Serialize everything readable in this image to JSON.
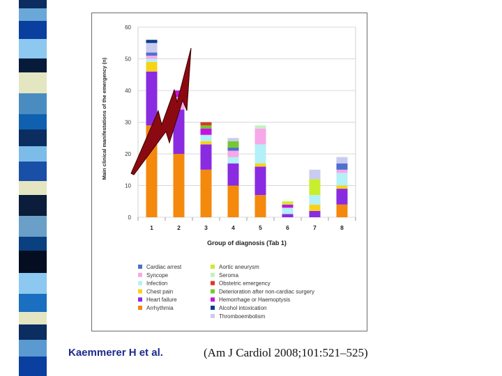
{
  "citation": {
    "author": "Kaemmerer H et al.",
    "reference": "(Am J Cardiol 2008;101:521–525)"
  },
  "colors": {
    "Cardiac arrest": "#4f6fcf",
    "Syncope": "#f7a8e8",
    "Infection": "#b3f0f7",
    "Chest pain": "#f7d316",
    "Heart failure": "#8a2be2",
    "Arrhythmia": "#f4890d",
    "Aortic aneurysm": "#c8ee2e",
    "Seroma": "#c2f1c2",
    "Obstetric emergency": "#d83a2a",
    "Deterioration after non-cardiac surgery": "#74c92e",
    "Hemorrhage or Haemoptysis": "#c414e0",
    "Alcohol intoxication": "#0a3f8c",
    "Thromboembolism": "#c9cbf0",
    "arrow": "#8b0a12"
  },
  "chart_data": {
    "type": "bar",
    "stacked": true,
    "title": "",
    "xlabel": "Group of diagnosis (Tab 1)",
    "ylabel": "Main clinical manifestations of the emergency (n)",
    "ylim": [
      0,
      60
    ],
    "yticks": [
      "0",
      "10",
      "20",
      "30",
      "40",
      "50",
      "60"
    ],
    "categories": [
      "1",
      "2",
      "3",
      "4",
      "5",
      "6",
      "7",
      "8"
    ],
    "series": [
      {
        "name": "Arrhythmia",
        "values": [
          29,
          20,
          15,
          10,
          7,
          0,
          0,
          4
        ]
      },
      {
        "name": "Heart failure",
        "values": [
          17,
          14,
          8,
          7,
          9,
          1,
          2,
          5
        ]
      },
      {
        "name": "Chest pain",
        "values": [
          3,
          0,
          1,
          0,
          1,
          0,
          2,
          1
        ]
      },
      {
        "name": "Infection",
        "values": [
          1,
          0,
          2,
          2,
          6,
          2,
          3,
          4
        ]
      },
      {
        "name": "Syncope",
        "values": [
          1,
          4,
          0,
          2,
          5,
          0,
          0,
          1
        ]
      },
      {
        "name": "Cardiac arrest",
        "values": [
          1,
          0,
          0,
          1,
          0,
          0,
          0,
          2
        ]
      },
      {
        "name": "Hemorrhage or Haemoptysis",
        "values": [
          0,
          2,
          2,
          0,
          0,
          1,
          0,
          0
        ]
      },
      {
        "name": "Deterioration after non-cardiac surgery",
        "values": [
          0,
          0,
          1,
          2,
          0,
          0,
          0,
          0
        ]
      },
      {
        "name": "Obstetric emergency",
        "values": [
          0,
          0,
          1,
          0,
          0,
          0,
          0,
          0
        ]
      },
      {
        "name": "Aortic aneurysm",
        "values": [
          0,
          0,
          0,
          0,
          0,
          1,
          5,
          0
        ]
      },
      {
        "name": "Seroma",
        "values": [
          0,
          0,
          0,
          0,
          1,
          0,
          0,
          0
        ]
      },
      {
        "name": "Thromboembolism",
        "values": [
          3,
          0,
          0,
          1,
          0,
          0,
          3,
          2
        ]
      },
      {
        "name": "Alcohol intoxication",
        "values": [
          1,
          0,
          0,
          0,
          0,
          0,
          0,
          0
        ]
      }
    ],
    "legend": {
      "placement": "bottom",
      "left_column": [
        "Cardiac arrest",
        "Syncope",
        "Infection",
        "Chest pain",
        "Heart failure",
        "Arrhythmia"
      ],
      "right_column": [
        "Aortic aneurysm",
        "Seroma",
        "Obstetric emergency",
        "Deterioration after non-cardiac surgery",
        "Hemorrhage or Haemoptysis",
        "Alcohol intoxication",
        "Thromboembolism"
      ],
      "labels": {
        "Cardiac arrest": "Cardiac arrest",
        "Syncope": "Syncope",
        "Infection": "Infection",
        "Chest pain": "Chest pain",
        "Heart failure": "Heart failure",
        "Arrhythmia": "Arrhythmia",
        "Aortic aneurysm": "Aortic aneurysm",
        "Seroma": "Seroma",
        "Obstetric emergency": "Obstetric emergency",
        "Deterioration after non-cardiac surgery": "Deterioration after non-cardiac surgery",
        "Hemorrhage or Haemoptysis": "Hemorrhage or Haemoptysis",
        "Alcohol intoxication": "Alcohol intoxication",
        "Thromboembolism": "Thromboembolism"
      }
    },
    "annotation": "lightning-arrow pointing into groups 1 and 2"
  }
}
